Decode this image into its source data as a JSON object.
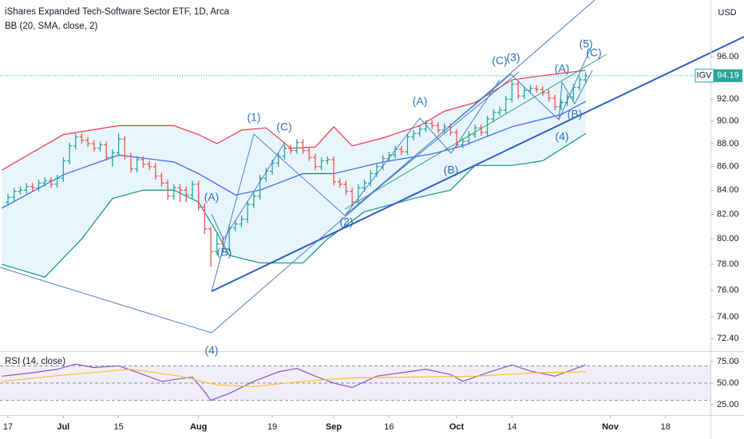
{
  "chart_data": [
    {
      "type": "ohlc",
      "title": "iShares Expanded Tech-Software Sector ETF, 1D, Arca",
      "indicator": "BB (20, SMA, close, 2)",
      "currency": "USD",
      "symbol": "IGV",
      "log_scale": true,
      "up_color": "#26a69a",
      "down_color": "#ef5350",
      "open": [
        83.0,
        83.4,
        83.9,
        84.0,
        84.3,
        84.2,
        84.6,
        84.8,
        84.5,
        85.0,
        86.5,
        87.8,
        88.6,
        88.3,
        88.0,
        87.6,
        87.9,
        86.8,
        87.2,
        88.4,
        86.9,
        85.8,
        86.6,
        86.2,
        86.0,
        85.2,
        84.6,
        83.5,
        84.2,
        84.0,
        83.6,
        84.5,
        82.6,
        80.8,
        79.0,
        79.6,
        79.2,
        80.9,
        81.2,
        81.6,
        82.8,
        83.5,
        85.0,
        85.6,
        86.3,
        86.9,
        87.6,
        87.4,
        88.1,
        87.4,
        86.8,
        86.0,
        86.5,
        86.6,
        84.7,
        84.5,
        83.9,
        83.0,
        84.2,
        84.6,
        85.4,
        86.0,
        86.7,
        87.0,
        87.5,
        87.3,
        88.6,
        88.9,
        89.3,
        89.8,
        89.6,
        89.2,
        89.5,
        89.0,
        87.9,
        88.2,
        88.8,
        89.4,
        89.0,
        90.2,
        90.8,
        91.0,
        92.0,
        93.4,
        92.3,
        92.8,
        93.0,
        92.9,
        92.6,
        92.1,
        91.3,
        91.7,
        92.2,
        93.1,
        93.8
      ],
      "high": [
        83.7,
        84.2,
        84.3,
        84.6,
        84.6,
        84.9,
        85.1,
        85.1,
        85.3,
        86.8,
        88.1,
        88.9,
        88.9,
        88.6,
        88.3,
        88.2,
        88.2,
        87.5,
        88.9,
        88.7,
        87.2,
        86.9,
        86.9,
        86.5,
        86.3,
        85.5,
        84.9,
        84.5,
        84.5,
        84.3,
        84.8,
        84.8,
        82.9,
        81.0,
        80.4,
        80.2,
        81.2,
        81.5,
        81.9,
        83.1,
        83.8,
        85.3,
        85.9,
        86.6,
        87.2,
        87.9,
        87.9,
        88.4,
        88.4,
        87.7,
        87.1,
        86.8,
        86.9,
        86.9,
        85.0,
        84.8,
        84.2,
        84.5,
        84.9,
        85.7,
        86.3,
        87.0,
        87.3,
        87.8,
        87.8,
        88.9,
        89.2,
        89.6,
        90.1,
        90.1,
        89.9,
        89.8,
        89.8,
        89.3,
        88.5,
        89.1,
        89.7,
        89.7,
        90.5,
        91.1,
        91.3,
        92.3,
        93.7,
        93.7,
        93.1,
        93.3,
        93.3,
        93.2,
        92.9,
        92.4,
        92.0,
        92.5,
        93.4,
        94.1,
        94.5
      ],
      "low": [
        82.7,
        83.1,
        83.6,
        83.7,
        83.9,
        83.9,
        84.3,
        84.2,
        84.2,
        84.7,
        86.2,
        87.5,
        88.0,
        87.7,
        87.3,
        87.3,
        86.5,
        86.0,
        86.9,
        86.6,
        85.5,
        85.5,
        85.9,
        85.7,
        84.9,
        84.3,
        83.2,
        83.2,
        83.0,
        83.0,
        83.3,
        82.3,
        80.4,
        77.8,
        78.7,
        78.9,
        79.0,
        80.6,
        80.9,
        81.3,
        82.5,
        83.2,
        84.7,
        85.3,
        86.0,
        86.6,
        87.1,
        87.1,
        87.1,
        86.5,
        85.7,
        85.7,
        86.2,
        84.4,
        84.2,
        83.6,
        82.7,
        82.7,
        83.9,
        84.3,
        85.1,
        85.7,
        86.4,
        86.7,
        87.0,
        87.0,
        88.3,
        88.6,
        89.0,
        89.3,
        88.9,
        88.9,
        88.7,
        87.6,
        87.6,
        87.9,
        88.5,
        88.7,
        88.7,
        89.9,
        90.5,
        90.7,
        91.7,
        92.0,
        92.0,
        92.5,
        92.6,
        92.3,
        91.8,
        91.0,
        91.0,
        91.4,
        91.9,
        92.8,
        93.5
      ],
      "close": [
        83.4,
        83.9,
        84.0,
        84.3,
        84.2,
        84.6,
        84.8,
        84.5,
        85.0,
        86.5,
        87.8,
        88.6,
        88.3,
        88.0,
        87.6,
        87.9,
        86.8,
        87.2,
        88.4,
        86.9,
        85.8,
        86.6,
        86.2,
        86.0,
        85.2,
        84.6,
        83.5,
        84.2,
        84.0,
        83.6,
        84.5,
        82.6,
        80.8,
        79.0,
        79.6,
        79.2,
        80.9,
        81.2,
        81.6,
        82.8,
        83.5,
        85.0,
        85.6,
        86.3,
        86.9,
        87.6,
        87.4,
        88.1,
        87.4,
        86.8,
        86.0,
        86.5,
        86.6,
        84.7,
        84.5,
        83.9,
        83.0,
        84.2,
        84.6,
        85.4,
        86.0,
        86.7,
        87.0,
        87.5,
        87.3,
        88.6,
        88.9,
        89.3,
        89.8,
        89.6,
        89.2,
        89.5,
        89.0,
        87.9,
        88.2,
        88.8,
        89.4,
        89.0,
        90.2,
        90.8,
        91.0,
        92.0,
        93.4,
        92.3,
        92.8,
        93.0,
        92.9,
        92.6,
        92.1,
        91.3,
        91.7,
        92.2,
        93.1,
        93.8,
        94.19
      ],
      "bands": [
        {
          "color": "#f23645",
          "x": [
            -1,
            9,
            18,
            27,
            31,
            34,
            38,
            42,
            46,
            50,
            53,
            56,
            61,
            67,
            71,
            76,
            82,
            87,
            94
          ],
          "values": [
            85.7,
            88.8,
            89.6,
            89.6,
            88.8,
            88.0,
            89.2,
            89.4,
            87.6,
            87.7,
            89.5,
            87.8,
            88.5,
            89.6,
            90.9,
            91.7,
            93.8,
            94.2,
            94.7
          ]
        },
        {
          "color": "#2962ff",
          "x": [
            -1,
            9,
            18,
            27,
            31,
            37,
            41,
            48,
            53,
            61,
            69,
            74,
            82,
            90,
            94
          ],
          "values": [
            82.5,
            85.3,
            87.0,
            86.4,
            85.4,
            83.6,
            84.0,
            85.4,
            85.4,
            86.4,
            87.1,
            87.8,
            89.5,
            90.6,
            91.8
          ]
        },
        {
          "color": "#089981",
          "x": [
            -1,
            6,
            12,
            17,
            22,
            27,
            31,
            34,
            36,
            41,
            48,
            52,
            58,
            66,
            72,
            76,
            82,
            87,
            94
          ],
          "values": [
            78.0,
            77.0,
            80.0,
            83.3,
            84.0,
            84.0,
            83.0,
            80.5,
            78.7,
            78.1,
            78.1,
            80.0,
            82.2,
            83.3,
            84.0,
            86.1,
            86.1,
            86.5,
            88.9
          ]
        }
      ],
      "band_fill": "#e3f2fd",
      "xlim": [
        -1.3,
        114.3
      ],
      "xticks": [
        {
          "value": 0,
          "label": "17"
        },
        {
          "value": 9,
          "label": "Jul"
        },
        {
          "value": 18,
          "label": "15"
        },
        {
          "value": 31,
          "label": "Aug"
        },
        {
          "value": 43,
          "label": "19"
        },
        {
          "value": 53,
          "label": "Sep"
        },
        {
          "value": 62,
          "label": "16"
        },
        {
          "value": 73,
          "label": "Oct"
        },
        {
          "value": 82,
          "label": "14"
        },
        {
          "value": 98,
          "label": "Nov"
        },
        {
          "value": 107,
          "label": "18"
        }
      ],
      "ylim": [
        71.5,
        101.6
      ],
      "yticks": [
        {
          "value": 96,
          "label": "96.00"
        },
        {
          "value": 92,
          "label": "92.00"
        },
        {
          "value": 90,
          "label": "90.00"
        },
        {
          "value": 88,
          "label": "88.00"
        },
        {
          "value": 86,
          "label": "86.00"
        },
        {
          "value": 84,
          "label": "84.00"
        },
        {
          "value": 82,
          "label": "82.00"
        },
        {
          "value": 80,
          "label": "80.00"
        },
        {
          "value": 78,
          "label": "78.00"
        },
        {
          "value": 76,
          "label": "76.00"
        },
        {
          "value": 74,
          "label": "74.00"
        },
        {
          "value": 72.4,
          "label": "72.40"
        }
      ],
      "annotations": [
        "(1)",
        "(C)",
        "(A)",
        "(B)",
        "(2)",
        "(A)",
        "(B)",
        "(C)",
        "(3)",
        "(A)",
        "(5)",
        "(C)",
        "(B)",
        "(4)",
        "(4)"
      ]
    },
    {
      "type": "line",
      "title": "RSI (14, close)",
      "band_fill": "#ede7f6",
      "bands": [
        70,
        50,
        30
      ],
      "series": [
        {
          "color": "#7e57c2",
          "x": [
            -1,
            4,
            8,
            11,
            14,
            18,
            22,
            25,
            28,
            30,
            32,
            33,
            36,
            40,
            44,
            47,
            50,
            53,
            56,
            60,
            64,
            68,
            72,
            74,
            78,
            82,
            85,
            89,
            92,
            94
          ],
          "values": [
            58,
            62,
            66,
            72,
            68,
            70,
            60,
            52,
            55,
            57,
            40,
            30,
            38,
            52,
            63,
            67,
            58,
            50,
            45,
            58,
            62,
            66,
            60,
            52,
            62,
            71,
            64,
            58,
            66,
            71
          ]
        },
        {
          "color": "#fbc02d",
          "x": [
            -1,
            10,
            20,
            28,
            34,
            40,
            48,
            56,
            66,
            76,
            86,
            94
          ],
          "values": [
            52,
            60,
            66,
            58,
            48,
            46,
            52,
            56,
            57,
            58,
            62,
            63
          ]
        }
      ],
      "ylim": [
        13,
        86
      ],
      "yticks": [
        {
          "value": 75,
          "label": "75.00"
        },
        {
          "value": 50,
          "label": "50.00"
        },
        {
          "value": 25,
          "label": "25.00"
        }
      ]
    }
  ]
}
